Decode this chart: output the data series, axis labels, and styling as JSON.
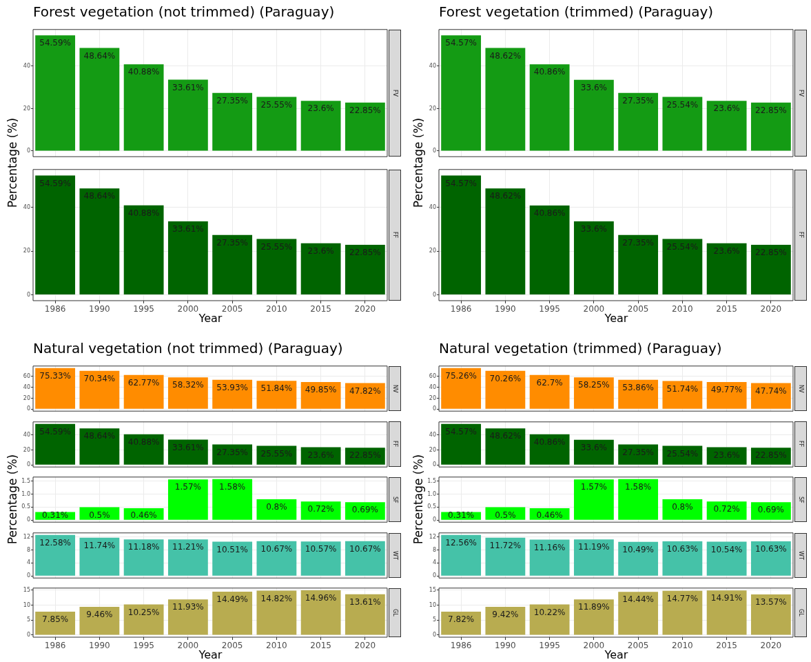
{
  "chart_data": [
    {
      "type": "bar",
      "title": "Forest vegetation (not trimmed) (Paraguay)",
      "ylabel": "Percentage (%)",
      "categories": [
        "1986",
        "1990",
        "1995",
        "2000",
        "2005",
        "2010",
        "2015",
        "2020"
      ],
      "values": [
        54.59,
        48.64,
        40.88,
        33.61,
        27.35,
        25.55,
        23.6,
        22.85
      ],
      "value_labels": [
        "54.59%",
        "48.64%",
        "40.88%",
        "33.61%",
        "27.35%",
        "25.55%",
        "23.6%",
        "22.85%"
      ],
      "color": "#149b14",
      "ylim": [
        -2.7,
        57.3
      ],
      "yticks": [
        0,
        20,
        40
      ],
      "grid": true,
      "tick_labels": "y",
      "annotations": [
        "FV"
      ]
    },
    {
      "type": "bar",
      "xlabel": "Year",
      "categories": [
        "1986",
        "1990",
        "1995",
        "2000",
        "2005",
        "2010",
        "2015",
        "2020"
      ],
      "values": [
        54.59,
        48.64,
        40.88,
        33.61,
        27.35,
        25.55,
        23.6,
        22.85
      ],
      "value_labels": [
        "54.59%",
        "48.64%",
        "40.88%",
        "33.61%",
        "27.35%",
        "25.55%",
        "23.6%",
        "22.85%"
      ],
      "color": "#006400",
      "ylim": [
        -2.7,
        57.3
      ],
      "yticks": [
        0,
        20,
        40
      ],
      "grid": true,
      "annotations": [
        "FF"
      ]
    },
    {
      "type": "bar",
      "title": "Forest vegetation (trimmed) (Paraguay)",
      "ylabel": "Percentage (%)",
      "categories": [
        "1986",
        "1990",
        "1995",
        "2000",
        "2005",
        "2010",
        "2015",
        "2020"
      ],
      "values": [
        54.57,
        48.62,
        40.86,
        33.6,
        27.35,
        25.54,
        23.6,
        22.85
      ],
      "value_labels": [
        "54.57%",
        "48.62%",
        "40.86%",
        "33.6%",
        "27.35%",
        "25.54%",
        "23.6%",
        "22.85%"
      ],
      "color": "#149b14",
      "ylim": [
        -2.7,
        57.3
      ],
      "yticks": [
        0,
        20,
        40
      ],
      "grid": true,
      "tick_labels": "y",
      "annotations": [
        "FV"
      ]
    },
    {
      "type": "bar",
      "xlabel": "Year",
      "categories": [
        "1986",
        "1990",
        "1995",
        "2000",
        "2005",
        "2010",
        "2015",
        "2020"
      ],
      "values": [
        54.57,
        48.62,
        40.86,
        33.6,
        27.35,
        25.54,
        23.6,
        22.85
      ],
      "value_labels": [
        "54.57%",
        "48.62%",
        "40.86%",
        "33.6%",
        "27.35%",
        "25.54%",
        "23.6%",
        "22.85%"
      ],
      "color": "#006400",
      "ylim": [
        -2.7,
        57.3
      ],
      "yticks": [
        0,
        20,
        40
      ],
      "grid": true,
      "annotations": [
        "FF"
      ]
    },
    {
      "type": "bar",
      "title": "Natural vegetation (not trimmed) (Paraguay)",
      "categories": [
        "1986",
        "1990",
        "1995",
        "2000",
        "2005",
        "2010",
        "2015",
        "2020"
      ],
      "values": [
        75.33,
        70.34,
        62.77,
        58.32,
        53.93,
        51.84,
        49.85,
        47.82
      ],
      "value_labels": [
        "75.33%",
        "70.34%",
        "62.77%",
        "58.32%",
        "53.93%",
        "51.84%",
        "49.85%",
        "47.82%"
      ],
      "color": "#ff8c00",
      "ylim": [
        -3.8,
        79.1
      ],
      "yticks": [
        0,
        20,
        40,
        60
      ],
      "grid": true,
      "tick_labels": "y",
      "annotations": [
        "NV"
      ]
    },
    {
      "type": "bar",
      "categories": [
        "1986",
        "1990",
        "1995",
        "2000",
        "2005",
        "2010",
        "2015",
        "2020"
      ],
      "values": [
        54.59,
        48.64,
        40.88,
        33.61,
        27.35,
        25.55,
        23.6,
        22.85
      ],
      "value_labels": [
        "54.59%",
        "48.64%",
        "40.88%",
        "33.61%",
        "27.35%",
        "25.55%",
        "23.6%",
        "22.85%"
      ],
      "color": "#006400",
      "ylim": [
        -2.7,
        57.3
      ],
      "yticks": [
        0,
        20,
        40
      ],
      "grid": true,
      "tick_labels": "y",
      "annotations": [
        "FF"
      ]
    },
    {
      "type": "bar",
      "ylabel": "Percentage (%)",
      "categories": [
        "1986",
        "1990",
        "1995",
        "2000",
        "2005",
        "2010",
        "2015",
        "2020"
      ],
      "values": [
        0.31,
        0.5,
        0.46,
        1.57,
        1.58,
        0.8,
        0.72,
        0.69
      ],
      "value_labels": [
        "0.31%",
        "0.5%",
        "0.46%",
        "1.57%",
        "1.58%",
        "0.8%",
        "0.72%",
        "0.69%"
      ],
      "color": "#00ff00",
      "ylim": [
        -0.08,
        1.66
      ],
      "yticks": [
        0,
        0.5,
        {
          "value": 1,
          "label": "1.0"
        },
        1.5
      ],
      "grid": true,
      "tick_labels": "y",
      "annotations": [
        "SF"
      ]
    },
    {
      "type": "bar",
      "categories": [
        "1986",
        "1990",
        "1995",
        "2000",
        "2005",
        "2010",
        "2015",
        "2020"
      ],
      "values": [
        12.58,
        11.74,
        11.18,
        11.21,
        10.51,
        10.67,
        10.57,
        10.67
      ],
      "value_labels": [
        "12.58%",
        "11.74%",
        "11.18%",
        "11.21%",
        "10.51%",
        "10.67%",
        "10.57%",
        "10.67%"
      ],
      "color": "#45c2a8",
      "ylim": [
        -0.6,
        13.2
      ],
      "yticks": [
        0,
        4,
        8,
        12
      ],
      "grid": true,
      "tick_labels": "y",
      "annotations": [
        "WT"
      ]
    },
    {
      "type": "bar",
      "xlabel": "Year",
      "categories": [
        "1986",
        "1990",
        "1995",
        "2000",
        "2005",
        "2010",
        "2015",
        "2020"
      ],
      "values": [
        7.85,
        9.46,
        10.25,
        11.93,
        14.49,
        14.82,
        14.96,
        13.61
      ],
      "value_labels": [
        "7.85%",
        "9.46%",
        "10.25%",
        "11.93%",
        "14.49%",
        "14.82%",
        "14.96%",
        "13.61%"
      ],
      "color": "#b8ac50",
      "ylim": [
        -0.7,
        15.7
      ],
      "yticks": [
        0,
        5,
        10,
        15
      ],
      "grid": true,
      "annotations": [
        "GL"
      ]
    },
    {
      "type": "bar",
      "title": "Natural vegetation (trimmed) (Paraguay)",
      "categories": [
        "1986",
        "1990",
        "1995",
        "2000",
        "2005",
        "2010",
        "2015",
        "2020"
      ],
      "values": [
        75.26,
        70.26,
        62.7,
        58.25,
        53.86,
        51.74,
        49.77,
        47.74
      ],
      "value_labels": [
        "75.26%",
        "70.26%",
        "62.7%",
        "58.25%",
        "53.86%",
        "51.74%",
        "49.77%",
        "47.74%"
      ],
      "color": "#ff8c00",
      "ylim": [
        -3.8,
        79.1
      ],
      "yticks": [
        0,
        20,
        40,
        60
      ],
      "grid": true,
      "tick_labels": "y",
      "annotations": [
        "NV"
      ]
    },
    {
      "type": "bar",
      "categories": [
        "1986",
        "1990",
        "1995",
        "2000",
        "2005",
        "2010",
        "2015",
        "2020"
      ],
      "values": [
        54.57,
        48.62,
        40.86,
        33.6,
        27.35,
        25.54,
        23.6,
        22.85
      ],
      "value_labels": [
        "54.57%",
        "48.62%",
        "40.86%",
        "33.6%",
        "27.35%",
        "25.54%",
        "23.6%",
        "22.85%"
      ],
      "color": "#006400",
      "ylim": [
        -2.7,
        57.3
      ],
      "yticks": [
        0,
        20,
        40
      ],
      "grid": true,
      "tick_labels": "y",
      "annotations": [
        "FF"
      ]
    },
    {
      "type": "bar",
      "ylabel": "Percentage (%)",
      "categories": [
        "1986",
        "1990",
        "1995",
        "2000",
        "2005",
        "2010",
        "2015",
        "2020"
      ],
      "values": [
        0.31,
        0.5,
        0.46,
        1.57,
        1.58,
        0.8,
        0.72,
        0.69
      ],
      "value_labels": [
        "0.31%",
        "0.5%",
        "0.46%",
        "1.57%",
        "1.58%",
        "0.8%",
        "0.72%",
        "0.69%"
      ],
      "color": "#00ff00",
      "ylim": [
        -0.08,
        1.66
      ],
      "yticks": [
        0,
        0.5,
        {
          "value": 1,
          "label": "1.0"
        },
        1.5
      ],
      "grid": true,
      "tick_labels": "y",
      "annotations": [
        "SF"
      ]
    },
    {
      "type": "bar",
      "categories": [
        "1986",
        "1990",
        "1995",
        "2000",
        "2005",
        "2010",
        "2015",
        "2020"
      ],
      "values": [
        12.56,
        11.72,
        11.16,
        11.19,
        10.49,
        10.63,
        10.54,
        10.63
      ],
      "value_labels": [
        "12.56%",
        "11.72%",
        "11.16%",
        "11.19%",
        "10.49%",
        "10.63%",
        "10.54%",
        "10.63%"
      ],
      "color": "#45c2a8",
      "ylim": [
        -0.6,
        13.2
      ],
      "yticks": [
        0,
        4,
        8,
        12
      ],
      "grid": true,
      "tick_labels": "y",
      "annotations": [
        "WT"
      ]
    },
    {
      "type": "bar",
      "xlabel": "Year",
      "categories": [
        "1986",
        "1990",
        "1995",
        "2000",
        "2005",
        "2010",
        "2015",
        "2020"
      ],
      "values": [
        7.82,
        9.42,
        10.22,
        11.89,
        14.44,
        14.77,
        14.91,
        13.57
      ],
      "value_labels": [
        "7.82%",
        "9.42%",
        "10.22%",
        "11.89%",
        "14.44%",
        "14.77%",
        "14.91%",
        "13.57%"
      ],
      "color": "#b8ac50",
      "ylim": [
        -0.7,
        15.7
      ],
      "yticks": [
        0,
        5,
        10,
        15
      ],
      "grid": true,
      "annotations": [
        "GL"
      ]
    }
  ]
}
